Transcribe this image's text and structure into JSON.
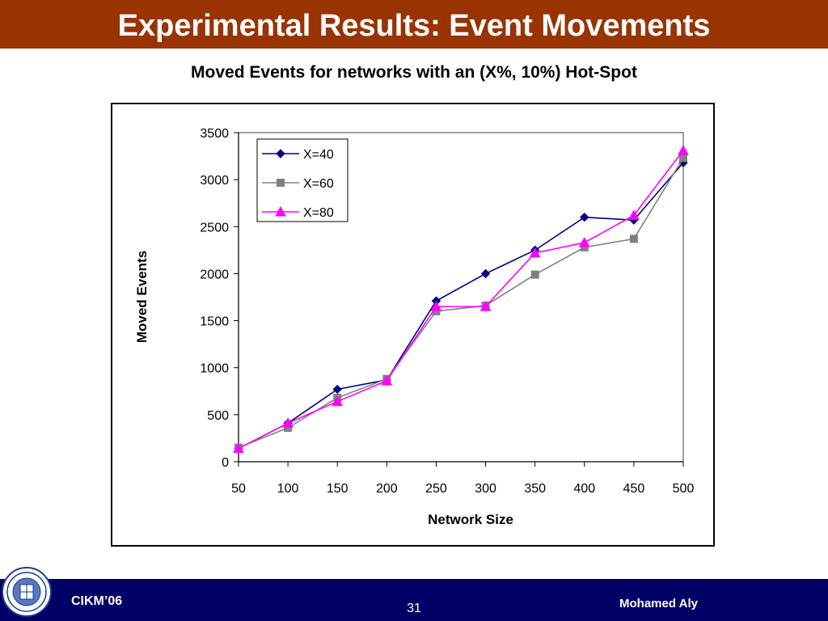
{
  "slide": {
    "title": "Experimental Results: Event Movements",
    "footer_left": "CIKM’06",
    "page_number": "31",
    "footer_right": "Mohamed Aly",
    "seal_icon": "university-seal-icon",
    "colors": {
      "title_bar": "#993300",
      "footer": "#000066"
    }
  },
  "chart_data": {
    "type": "line",
    "title": "Moved Events for networks with an (X%, 10%) Hot-Spot",
    "xlabel": "Network Size",
    "ylabel": "Moved Events",
    "x": [
      50,
      100,
      150,
      200,
      250,
      300,
      350,
      400,
      450,
      500
    ],
    "ylim": [
      0,
      3500
    ],
    "yticks": [
      0,
      500,
      1000,
      1500,
      2000,
      2500,
      3000,
      3500
    ],
    "grid": false,
    "legend_position": "top-left",
    "series": [
      {
        "name": "X=40",
        "color": "#000080",
        "marker": "diamond",
        "values": [
          140,
          410,
          770,
          870,
          1710,
          2000,
          2250,
          2600,
          2570,
          3180
        ]
      },
      {
        "name": "X=60",
        "color": "#808080",
        "marker": "square",
        "values": [
          150,
          360,
          680,
          880,
          1600,
          1660,
          1990,
          2280,
          2370,
          3230
        ]
      },
      {
        "name": "X=80",
        "color": "#ff00ff",
        "marker": "triangle",
        "values": [
          140,
          410,
          640,
          860,
          1650,
          1650,
          2220,
          2330,
          2620,
          3310
        ]
      }
    ]
  }
}
